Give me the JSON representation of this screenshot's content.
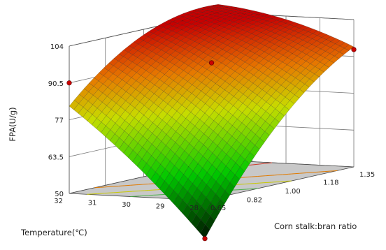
{
  "chart_data": {
    "type": "surface3d",
    "title": "",
    "zlabel": "FPA(U/g)",
    "xlabel": "Corn stalk:bran ratio",
    "ylabel": "Temperature(℃)",
    "x_ticks": [
      "0.65",
      "0.82",
      "1.00",
      "1.18",
      "1.35"
    ],
    "y_ticks": [
      "28",
      "29",
      "30",
      "31",
      "32"
    ],
    "z_ticks": [
      "50",
      "63.5",
      "77",
      "90.5",
      "104"
    ],
    "xlim": [
      0.65,
      1.35
    ],
    "ylim": [
      28,
      32
    ],
    "zlim": [
      50,
      104
    ],
    "design_points": [
      {
        "x": 0.65,
        "y": 32,
        "z": 90.5
      },
      {
        "x": 1.0,
        "y": 30,
        "z": 93
      },
      {
        "x": 1.35,
        "y": 28,
        "z": 93
      },
      {
        "x": 0.65,
        "y": 28,
        "z": 36
      }
    ],
    "colors": {
      "low": "#000000",
      "mid": "#00c000",
      "high1": "#ffff00",
      "high2": "#ff0000",
      "point": "#cc0000",
      "floor": "#c8c8c8"
    }
  }
}
